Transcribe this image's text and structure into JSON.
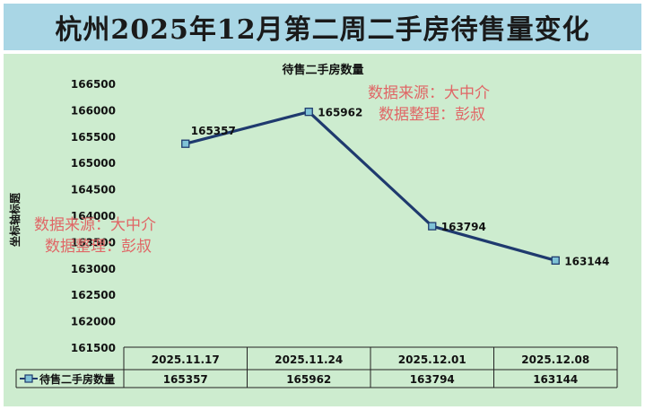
{
  "title": "杭州2025年12月第二周二手房待售量变化",
  "watermark": {
    "line1": "数据来源：大中介",
    "line2": "数据整理：彭叔"
  },
  "colors": {
    "title_bg": "#a9d6e5",
    "plot_bg": "#cdeccf",
    "series_line": "#1f3a6e",
    "marker_fill": "#7fc2d6",
    "watermark": "#e06666"
  },
  "chart_data": {
    "type": "line",
    "title": "待售二手房数量",
    "ylabel": "坐标轴标题",
    "xlabel": "",
    "categories": [
      "2025.11.17",
      "2025.11.24",
      "2025.12.01",
      "2025.12.08"
    ],
    "series": [
      {
        "name": "待售二手房数量",
        "values": [
          165357,
          165962,
          163794,
          163144
        ]
      }
    ],
    "ylim": [
      161500,
      166500
    ],
    "yticks": [
      166500,
      166000,
      165500,
      165000,
      164500,
      164000,
      163500,
      163000,
      162500,
      162000,
      161500
    ],
    "data_labels": [
      "165357",
      "165962",
      "163794",
      "163144"
    ],
    "grid": false,
    "legend": "data-table",
    "data_table": true
  }
}
